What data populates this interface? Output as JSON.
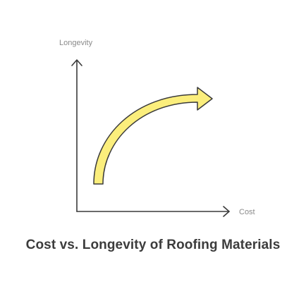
{
  "diagram": {
    "y_axis_label": "Longevity",
    "x_axis_label": "Cost",
    "caption": "Cost vs. Longevity of Roofing Materials",
    "colors": {
      "axis": "#3a3a3a",
      "axis_label": "#8a8a8a",
      "arrow_fill": "#fbee7c",
      "arrow_stroke": "#3a3a3a",
      "caption": "#3c3c3c"
    }
  }
}
